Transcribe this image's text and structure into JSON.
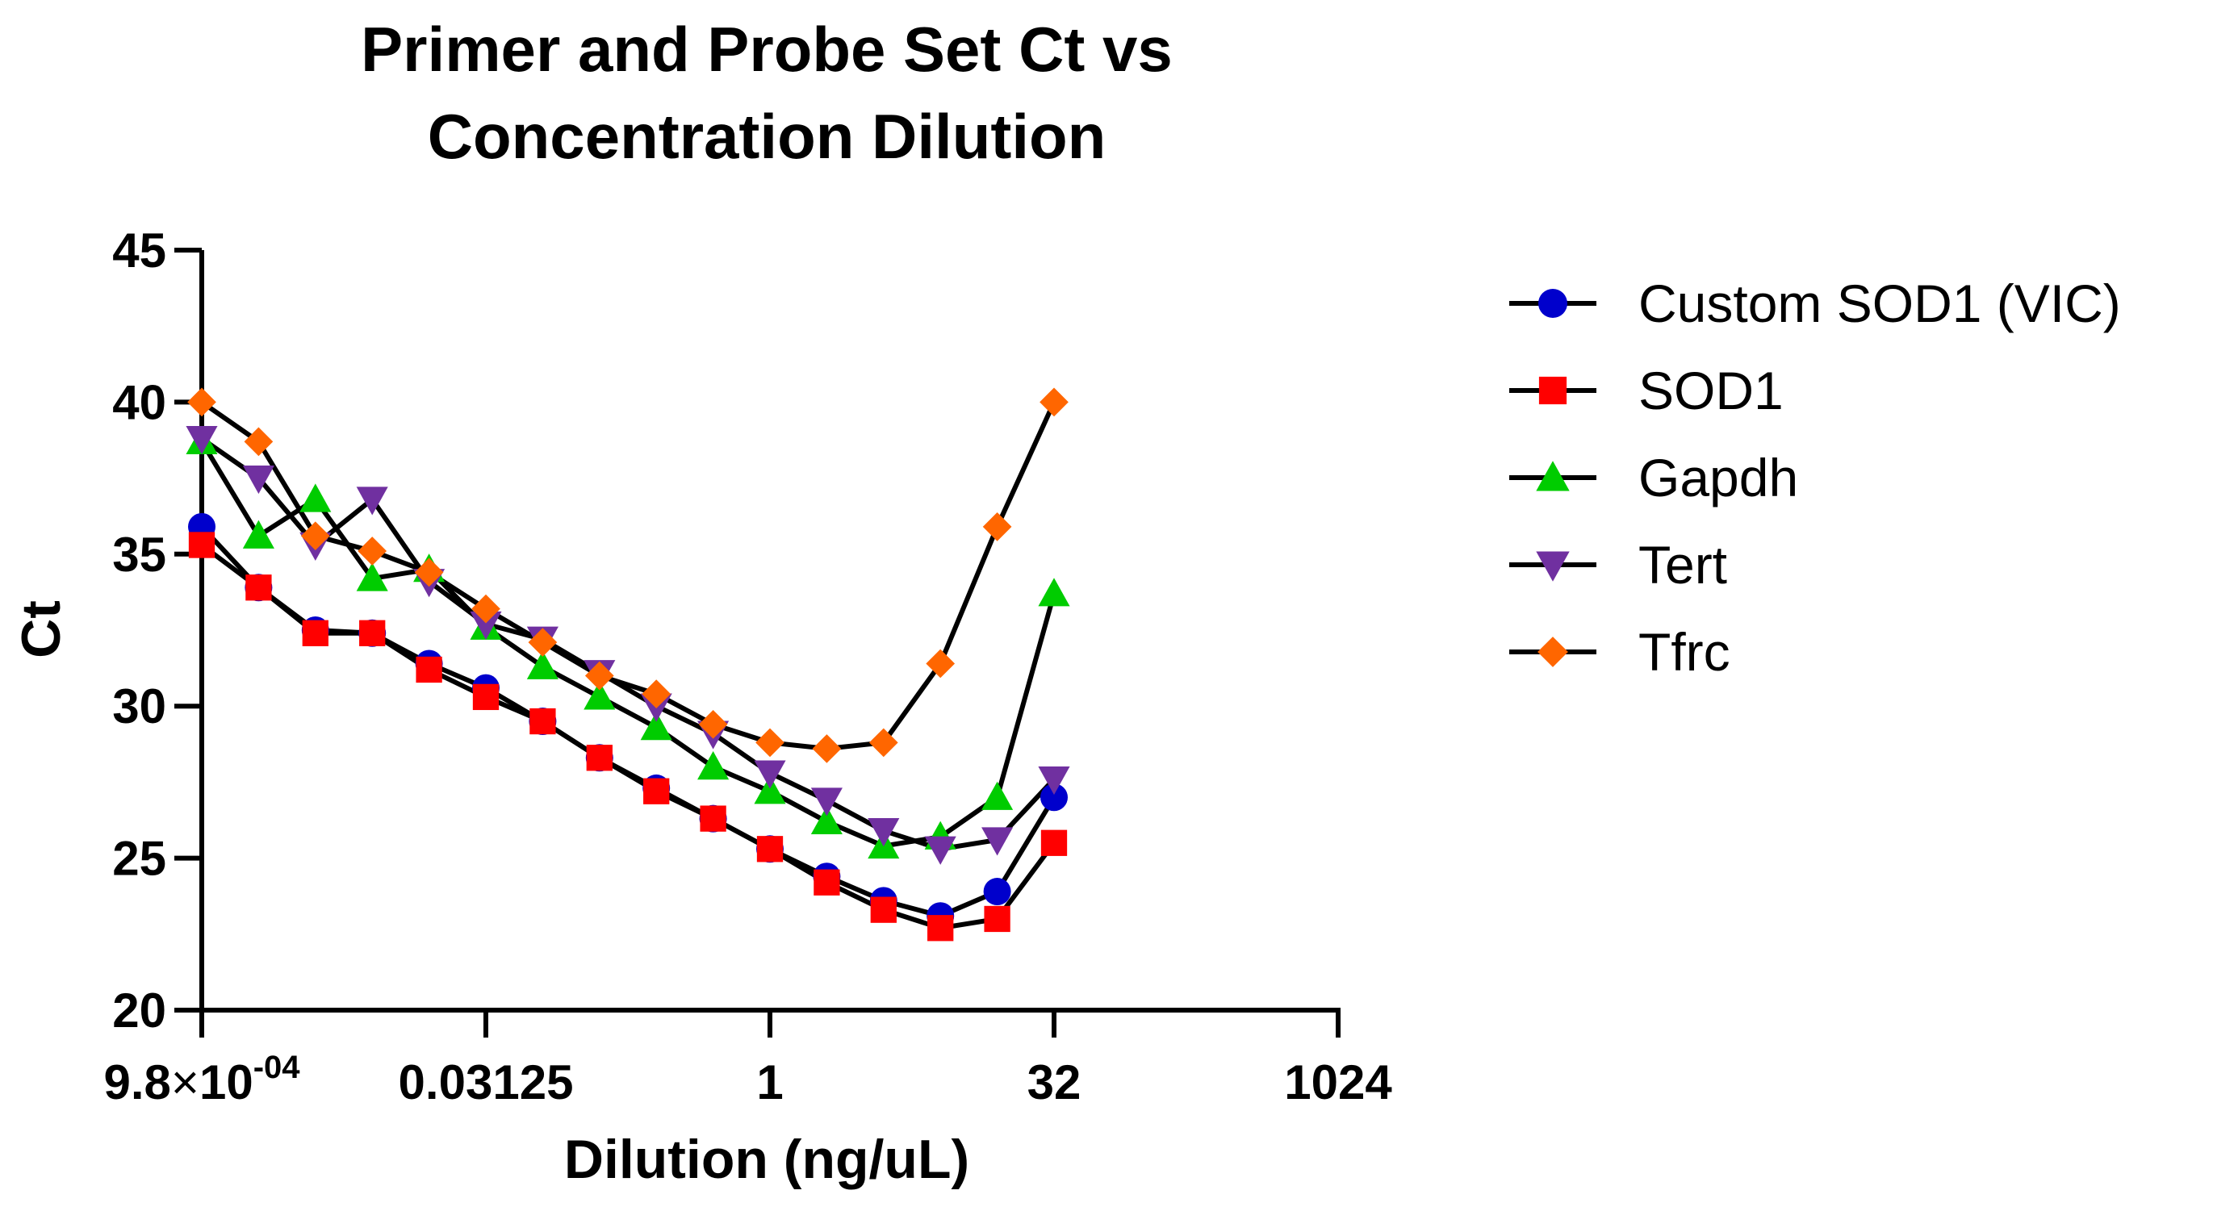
{
  "chart_data": {
    "type": "line",
    "title": "Primer and Probe Set Ct vs Concentration  Dilution",
    "title_lines": [
      "Primer and Probe Set Ct vs",
      "Concentration  Dilution"
    ],
    "xlabel": "Dilution (ng/uL)",
    "ylabel": "Ct",
    "x_scale": "log2",
    "xlim": [
      0.0009765625,
      1024
    ],
    "ylim": [
      20,
      45
    ],
    "x_ticks": [
      {
        "value": 0.0009765625,
        "mantissa": "9.8",
        "times": "×",
        "base": "10",
        "exponent": "-04"
      },
      {
        "value": 0.03125,
        "label": "0.03125"
      },
      {
        "value": 1,
        "label": "1"
      },
      {
        "value": 32,
        "label": "32"
      },
      {
        "value": 1024,
        "label": "1024"
      }
    ],
    "y_ticks": [
      20,
      25,
      30,
      35,
      40,
      45
    ],
    "grid": false,
    "legend_position": "right",
    "x": [
      0.0009765625,
      0.001953125,
      0.00390625,
      0.0078125,
      0.015625,
      0.03125,
      0.0625,
      0.125,
      0.25,
      0.5,
      1,
      2,
      4,
      8,
      16,
      32
    ],
    "series": [
      {
        "name": "Custom SOD1 (VIC)",
        "color": "#0000CC",
        "marker": "circle",
        "values": [
          35.9,
          33.9,
          32.5,
          32.4,
          31.4,
          30.6,
          29.5,
          28.3,
          27.3,
          26.3,
          25.3,
          24.4,
          23.6,
          23.1,
          23.9,
          27.0
        ]
      },
      {
        "name": "SOD1",
        "color": "#FF0000",
        "marker": "square",
        "values": [
          35.3,
          33.9,
          32.4,
          32.4,
          31.2,
          30.3,
          29.5,
          28.3,
          27.2,
          26.3,
          25.3,
          24.2,
          23.3,
          22.7,
          23.0,
          25.5
        ]
      },
      {
        "name": "Gapdh",
        "color": "#00CC00",
        "marker": "triangle-up",
        "values": [
          38.7,
          35.6,
          36.8,
          34.2,
          34.5,
          32.6,
          31.3,
          30.3,
          29.3,
          28.0,
          27.2,
          26.2,
          25.4,
          25.7,
          27.0,
          33.7
        ]
      },
      {
        "name": "Tert",
        "color": "#7030A0",
        "marker": "triangle-down",
        "values": [
          38.8,
          37.5,
          35.3,
          36.8,
          34.1,
          32.7,
          32.2,
          31.1,
          30.0,
          29.1,
          27.8,
          26.9,
          25.9,
          25.3,
          25.6,
          27.6
        ]
      },
      {
        "name": "Tfrc",
        "color": "#FF6600",
        "marker": "diamond",
        "values": [
          40.0,
          38.7,
          35.6,
          35.1,
          34.4,
          33.2,
          32.1,
          31.0,
          30.4,
          29.4,
          28.8,
          28.6,
          28.8,
          31.4,
          35.9,
          40.0
        ]
      }
    ]
  }
}
